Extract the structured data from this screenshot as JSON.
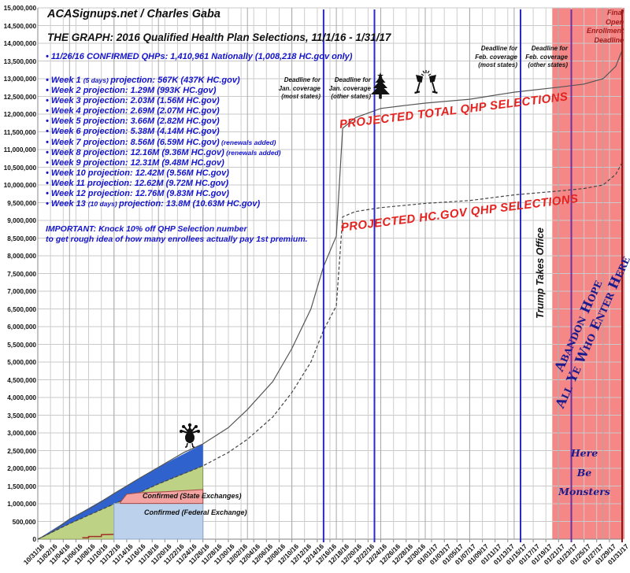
{
  "header": {
    "site": "ACASignups.net / Charles Gaba",
    "title": "THE GRAPH: 2016 Qualified Health Plan Selections, 11/1/16 - 1/31/17"
  },
  "notes": {
    "confirmed": "• 11/26/16 CONFIRMED QHPs: 1,410,961 Nationally (1,008,218 HC.gov only)",
    "important_1": "IMPORTANT: Knock 10% off QHP Selection number",
    "important_2": "to get rough idea of how many enrollees actually pay 1st premium."
  },
  "weeks": [
    {
      "pre": "Week 1",
      "qual": "(5 days)",
      "post": "projection: 567K (437K HC.gov)",
      "suffix": ""
    },
    {
      "pre": "Week 2",
      "qual": "",
      "post": "projection: 1.29M (993K HC.gov)",
      "suffix": ""
    },
    {
      "pre": "Week 3",
      "qual": "",
      "post": "projection: 2.03M (1.56M HC.gov)",
      "suffix": ""
    },
    {
      "pre": "Week 4",
      "qual": "",
      "post": "projection: 2.69M (2.07M HC.gov)",
      "suffix": ""
    },
    {
      "pre": "Week 5",
      "qual": "",
      "post": "projection: 3.66M (2.82M HC.gov)",
      "suffix": ""
    },
    {
      "pre": "Week 6",
      "qual": "",
      "post": "projection: 5.38M (4.14M HC.gov)",
      "suffix": ""
    },
    {
      "pre": "Week 7",
      "qual": "",
      "post": "projection: 8.56M (6.59M HC.gov)",
      "suffix": "(renewals added)"
    },
    {
      "pre": "Week 8",
      "qual": "",
      "post": "projection: 12.16M (9.36M HC.gov)",
      "suffix": "(renewals added)"
    },
    {
      "pre": "Week 9",
      "qual": "",
      "post": "projection: 12.31M (9.48M HC.gov)",
      "suffix": ""
    },
    {
      "pre": "Week 10",
      "qual": "",
      "post": "projection: 12.42M (9.56M HC.gov)",
      "suffix": ""
    },
    {
      "pre": "Week 11",
      "qual": "",
      "post": "projection: 12.62M (9.72M HC.gov)",
      "suffix": ""
    },
    {
      "pre": "Week 12",
      "qual": "",
      "post": "projection: 12.76M (9.83M HC.gov)",
      "suffix": ""
    },
    {
      "pre": "Week 13",
      "qual": "(10 days)",
      "post": "projection: 13.8M (10.63M HC.gov)",
      "suffix": ""
    }
  ],
  "chart_data": {
    "type": "line",
    "title": "THE GRAPH: 2016 Qualified Health Plan Selections, 11/1/16 - 1/31/17",
    "ylim": [
      0,
      15000000
    ],
    "ytick_step": 500000,
    "x_start": "10/31/16",
    "x_end": "01/31/17",
    "xtick_every_days": 2,
    "grid": true,
    "ytick_labels": [
      "0",
      "500,000",
      "1,000,000",
      "1,500,000",
      "2,000,000",
      "2,500,000",
      "3,000,000",
      "3,500,000",
      "4,000,000",
      "4,500,000",
      "5,000,000",
      "5,500,000",
      "6,000,000",
      "6,500,000",
      "7,000,000",
      "7,500,000",
      "8,000,000",
      "8,500,000",
      "9,000,000",
      "9,500,000",
      "10,000,000",
      "10,500,000",
      "11,000,000",
      "11,500,000",
      "12,000,000",
      "12,500,000",
      "13,000,000",
      "13,500,000",
      "14,000,000",
      "14,500,000",
      "15,000,000"
    ],
    "xtick_labels": [
      "10/31/16",
      "11/02/16",
      "11/04/16",
      "11/06/16",
      "11/08/16",
      "11/10/16",
      "11/12/16",
      "11/14/16",
      "11/16/16",
      "11/18/16",
      "11/20/16",
      "11/22/16",
      "11/24/16",
      "11/26/16",
      "11/28/16",
      "11/30/16",
      "12/02/16",
      "12/04/16",
      "12/06/16",
      "12/08/16",
      "12/10/16",
      "12/12/16",
      "12/14/16",
      "12/16/16",
      "12/18/16",
      "12/20/16",
      "12/22/16",
      "12/24/16",
      "12/26/16",
      "12/28/16",
      "12/30/16",
      "01/01/17",
      "01/03/17",
      "01/05/17",
      "01/07/17",
      "01/09/17",
      "01/11/17",
      "01/13/17",
      "01/15/17",
      "01/17/17",
      "01/19/17",
      "01/21/17",
      "01/23/17",
      "01/25/17",
      "01/27/17",
      "01/29/17",
      "01/31/17"
    ],
    "series": [
      {
        "name": "Projected Total QHP Selections",
        "label": "PROJECTED TOTAL QHP SELECTIONS",
        "line_style": "solid",
        "color": "#555555",
        "points": [
          [
            "10/31/16",
            0
          ],
          [
            "11/02/16",
            180000
          ],
          [
            "11/05/16",
            567000
          ],
          [
            "11/09/16",
            950000
          ],
          [
            "11/12/16",
            1290000
          ],
          [
            "11/16/16",
            1720000
          ],
          [
            "11/19/16",
            2030000
          ],
          [
            "11/23/16",
            2450000
          ],
          [
            "11/26/16",
            2690000
          ],
          [
            "11/30/16",
            3150000
          ],
          [
            "12/03/16",
            3660000
          ],
          [
            "12/07/16",
            4450000
          ],
          [
            "12/10/16",
            5380000
          ],
          [
            "12/13/16",
            6500000
          ],
          [
            "12/15/16",
            7700000
          ],
          [
            "12/17/16",
            8560000
          ],
          [
            "12/18/16",
            11600000
          ],
          [
            "12/20/16",
            11900000
          ],
          [
            "12/24/16",
            12160000
          ],
          [
            "12/28/16",
            12250000
          ],
          [
            "12/31/16",
            12310000
          ],
          [
            "01/07/17",
            12420000
          ],
          [
            "01/14/17",
            12620000
          ],
          [
            "01/21/17",
            12760000
          ],
          [
            "01/25/17",
            12850000
          ],
          [
            "01/28/17",
            13000000
          ],
          [
            "01/30/17",
            13350000
          ],
          [
            "01/31/17",
            13800000
          ]
        ]
      },
      {
        "name": "Projected HC.gov QHP Selections",
        "label": "PROJECTED HC.GOV QHP SELECTIONS",
        "line_style": "dashed",
        "color": "#444444",
        "points": [
          [
            "10/31/16",
            0
          ],
          [
            "11/05/16",
            437000
          ],
          [
            "11/12/16",
            993000
          ],
          [
            "11/19/16",
            1560000
          ],
          [
            "11/26/16",
            2070000
          ],
          [
            "11/30/16",
            2450000
          ],
          [
            "12/03/16",
            2820000
          ],
          [
            "12/07/16",
            3450000
          ],
          [
            "12/10/16",
            4140000
          ],
          [
            "12/13/16",
            5000000
          ],
          [
            "12/15/16",
            5900000
          ],
          [
            "12/17/16",
            6590000
          ],
          [
            "12/18/16",
            9100000
          ],
          [
            "12/20/16",
            9250000
          ],
          [
            "12/24/16",
            9360000
          ],
          [
            "12/31/16",
            9480000
          ],
          [
            "01/07/17",
            9560000
          ],
          [
            "01/14/17",
            9720000
          ],
          [
            "01/21/17",
            9830000
          ],
          [
            "01/25/17",
            9900000
          ],
          [
            "01/28/17",
            10000000
          ],
          [
            "01/30/17",
            10300000
          ],
          [
            "01/31/17",
            10630000
          ]
        ]
      }
    ],
    "confirmed_area": {
      "total_color": "#2F62CC",
      "hcgov_color": "#BDD284",
      "total_points": [
        [
          "10/31/16",
          0
        ],
        [
          "11/05/16",
          567000
        ],
        [
          "11/12/16",
          1290000
        ],
        [
          "11/19/16",
          2030000
        ],
        [
          "11/26/16",
          2690000
        ]
      ],
      "hcgov_points": [
        [
          "10/31/16",
          0
        ],
        [
          "11/05/16",
          437000
        ],
        [
          "11/12/16",
          993000
        ],
        [
          "11/19/16",
          1560000
        ],
        [
          "11/26/16",
          2070000
        ]
      ]
    },
    "federal_box": {
      "label": "Confirmed (Federal Exchange)",
      "value": 1008218,
      "x1": "11/12/16",
      "x2": "11/26/16",
      "fill": "#BCD1EC",
      "stroke": "#8FA5C6"
    },
    "state_box": {
      "label": "Confirmed (State Exchanges)",
      "value": 1410961,
      "base": 1008218,
      "fill": "#F3A3A1",
      "stroke": "#A34A45",
      "points_top": [
        [
          "11/13/16",
          1040000
        ],
        [
          "11/14/16",
          1270000
        ],
        [
          "11/16/16",
          1310000
        ],
        [
          "11/20/16",
          1340000
        ],
        [
          "11/26/16",
          1400000
        ]
      ]
    },
    "state_step_points": [
      [
        "11/07/16",
        40000
      ],
      [
        "11/08/16",
        40000
      ],
      [
        "11/08/16",
        75000
      ],
      [
        "11/10/16",
        75000
      ],
      [
        "11/10/16",
        125000
      ],
      [
        "11/12/16",
        135000
      ]
    ],
    "deadlines": [
      {
        "date": "12/15/16",
        "color": "#2A2AC8",
        "label_lines": [
          "Deadline for",
          "Jan. coverage",
          "(most states)"
        ]
      },
      {
        "date": "12/23/16",
        "color": "#2A2AC8",
        "label_lines": [
          "Deadline for",
          "Jan. coverage",
          "(other states)"
        ]
      },
      {
        "date": "01/15/17",
        "color": "#2A2AC8",
        "label_lines": [
          "Deadline for",
          "Feb. coverage",
          "(most states)"
        ]
      },
      {
        "date": "01/23/17",
        "color": "#7030A0",
        "label_lines": [
          "Deadline for",
          "Feb. coverage",
          "(other states)"
        ]
      },
      {
        "date": "01/31/17",
        "color": "#8E1A1A",
        "label_lines": []
      }
    ],
    "red_zone": {
      "start": "01/20/17",
      "end": "01/31/17",
      "color": "#F68787"
    },
    "events": [
      {
        "name": "thanksgiving",
        "icon": "turkey-icon",
        "date": "11/24/16",
        "y_value": 2950000
      },
      {
        "name": "christmas",
        "icon": "christmas-tree-icon",
        "date": "12/24/16",
        "y_value": 12800000
      },
      {
        "name": "new-years",
        "icon": "champagne-glasses-icon",
        "date": "12/31/16",
        "y_value": 12900000
      }
    ],
    "annotations": {
      "trump": "Trump Takes Office",
      "abandon_lines": [
        "Abandon Hope",
        "All Ye Who Enter Here"
      ],
      "monsters_lines": [
        "Here",
        "Be",
        "Monsters"
      ],
      "final_deadline_lines": [
        "Final",
        "Open",
        "Enrollment",
        "Deadline"
      ]
    }
  }
}
